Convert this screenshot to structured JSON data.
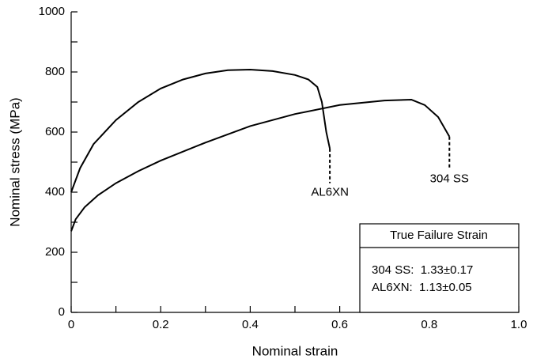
{
  "chart_data": {
    "type": "line",
    "xlabel": "Nominal strain",
    "ylabel": "Nominal stress (MPa)",
    "xlim": [
      0,
      1
    ],
    "ylim": [
      0,
      1000
    ],
    "xticks": [
      0,
      0.2,
      0.4,
      0.6,
      0.8,
      {
        "value": 1,
        "label": "1.0"
      }
    ],
    "xminor_ticks": [
      0.1,
      0.3,
      0.5,
      0.7,
      0.9
    ],
    "yticks": [
      0,
      200,
      400,
      600,
      800,
      1000
    ],
    "yminor_ticks": [
      100,
      300,
      500,
      700,
      900
    ],
    "series": [
      {
        "name": "AL6XN",
        "color": "#000000",
        "x": [
          0,
          0.02,
          0.05,
          0.1,
          0.15,
          0.2,
          0.25,
          0.3,
          0.35,
          0.4,
          0.45,
          0.5,
          0.53,
          0.55,
          0.56,
          0.57,
          0.578
        ],
        "values": [
          400,
          480,
          560,
          640,
          700,
          745,
          775,
          795,
          806,
          808,
          803,
          790,
          775,
          750,
          700,
          600,
          545
        ],
        "dashed": {
          "x": [
            0.578,
            0.578
          ],
          "values": [
            545,
            430
          ]
        }
      },
      {
        "name": "304 SS",
        "color": "#000000",
        "x": [
          0,
          0.01,
          0.03,
          0.06,
          0.1,
          0.15,
          0.2,
          0.3,
          0.4,
          0.5,
          0.6,
          0.7,
          0.76,
          0.79,
          0.82,
          0.845
        ],
        "values": [
          270,
          310,
          350,
          390,
          430,
          470,
          505,
          565,
          620,
          660,
          690,
          705,
          708,
          690,
          650,
          585
        ],
        "dashed": {
          "x": [
            0.845,
            0.845
          ],
          "values": [
            585,
            475
          ]
        }
      }
    ],
    "table": {
      "title": "True Failure Strain",
      "rows": [
        "304 SS:  1.33±0.17",
        "AL6XN:  1.13±0.05"
      ]
    }
  }
}
